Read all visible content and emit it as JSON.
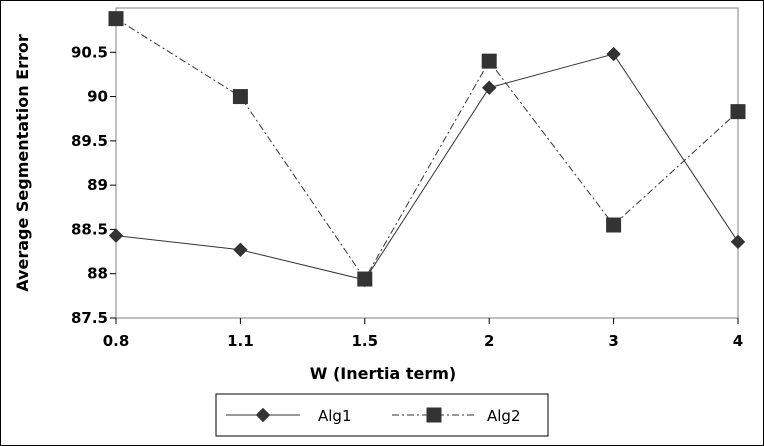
{
  "chart_data": {
    "type": "line",
    "title": "",
    "xlabel": "W (Inertia term)",
    "ylabel": "Average Segmentation Error",
    "categories": [
      "0.8",
      "1.1",
      "1.5",
      "2",
      "3",
      "4"
    ],
    "ylim": [
      87.5,
      91.0
    ],
    "yticks": [
      "87.5",
      "88",
      "88.5",
      "89",
      "89.5",
      "90",
      "90.5"
    ],
    "grid": false,
    "legend_position": "bottom",
    "series": [
      {
        "name": "Alg1",
        "values": [
          88.43,
          88.27,
          87.93,
          90.1,
          90.48,
          88.36
        ],
        "color": "#333333",
        "marker": "diamond",
        "line": "solid"
      },
      {
        "name": "Alg2",
        "values": [
          90.88,
          90.0,
          87.94,
          90.4,
          88.55,
          89.83
        ],
        "color": "#333333",
        "marker": "square",
        "line": "dash-dot"
      }
    ]
  }
}
